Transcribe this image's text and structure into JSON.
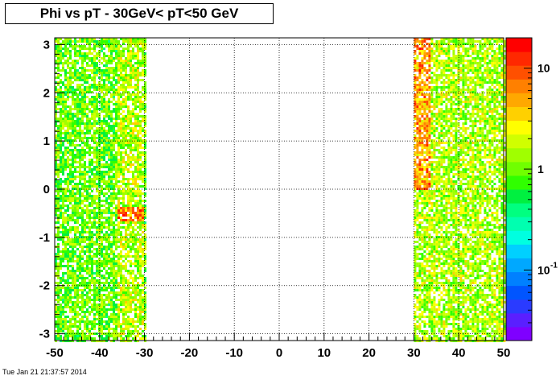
{
  "chart_data": {
    "type": "heatmap",
    "title": "Phi vs pT - 30GeV< pT<50 GeV",
    "xlim": [
      -50,
      50
    ],
    "ylim": [
      -3.14,
      3.14
    ],
    "x_ticks": [
      {
        "value": -50,
        "label": "-50"
      },
      {
        "value": -40,
        "label": "-40"
      },
      {
        "value": -30,
        "label": "-30"
      },
      {
        "value": -20,
        "label": "-20"
      },
      {
        "value": -10,
        "label": "-10"
      },
      {
        "value": 0,
        "label": "0"
      },
      {
        "value": 10,
        "label": "10"
      },
      {
        "value": 20,
        "label": "20"
      },
      {
        "value": 30,
        "label": "30"
      },
      {
        "value": 40,
        "label": "40"
      },
      {
        "value": 50,
        "label": "50"
      }
    ],
    "y_ticks": [
      {
        "value": -3,
        "label": "-3"
      },
      {
        "value": -2,
        "label": "-2"
      },
      {
        "value": -1,
        "label": "-1"
      },
      {
        "value": 0,
        "label": "0"
      },
      {
        "value": 1,
        "label": "1"
      },
      {
        "value": 2,
        "label": "2"
      },
      {
        "value": 3,
        "label": "3"
      }
    ],
    "grid": true,
    "z_scale": "log",
    "z_range": [
      0.02,
      20
    ],
    "z_ticks": [
      {
        "value": 0.1,
        "label": "10",
        "sup": "-1"
      },
      {
        "value": 1,
        "label": "1",
        "sup": ""
      },
      {
        "value": 10,
        "label": "10",
        "sup": ""
      }
    ],
    "filled_regions": [
      {
        "x_range": [
          -50,
          -30
        ],
        "typical_value": 1.0,
        "hot_spot": {
          "x_range": [
            -36,
            -30
          ],
          "y": -0.5,
          "value": 8
        }
      },
      {
        "x_range": [
          30,
          50
        ],
        "typical_value": 1.5,
        "hot_spot": {
          "x_range": [
            30,
            34
          ],
          "y_range": [
            0,
            3.14
          ],
          "value": 6
        }
      }
    ],
    "empty_region": {
      "x_range": [
        -30,
        30
      ]
    }
  },
  "palette": [
    "#7f00ff",
    "#5a1fff",
    "#2a3bff",
    "#0055ff",
    "#0080ff",
    "#00a8ff",
    "#00d0ff",
    "#00ffe0",
    "#00ffb0",
    "#00ff80",
    "#00f040",
    "#30ff00",
    "#70ff00",
    "#a0ff00",
    "#d0ff00",
    "#ffff00",
    "#ffd000",
    "#ffa800",
    "#ff8000",
    "#ff5000",
    "#ff2800",
    "#ff0000"
  ],
  "timestamp": "Tue Jan 21 21:37:57 2014"
}
